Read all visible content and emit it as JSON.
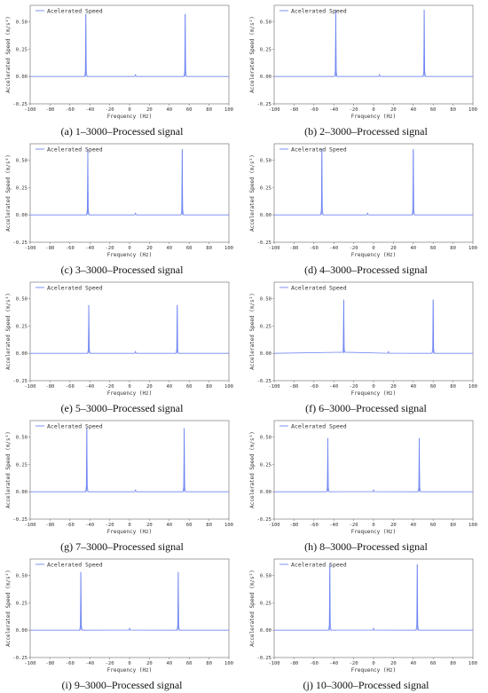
{
  "figure": {
    "series_color": "#6f86f2",
    "axis_color": "#666666"
  },
  "chart_data": [
    {
      "type": "line",
      "caption": "(a) 1–3000–Processed signal",
      "legend": "Acelerated Speed",
      "xlabel": "Frequency (Hz)",
      "ylabel": "Accelerated Speed (m/s²)",
      "xlim": [
        -100,
        100
      ],
      "ylim": [
        -0.25,
        0.65
      ],
      "xticks": [
        "-100",
        "-80",
        "-60",
        "-40",
        "-20",
        "0",
        "20",
        "40",
        "60",
        "80",
        "100"
      ],
      "yticks": [
        "-0.25",
        "0.00",
        "0.25",
        "0.50"
      ],
      "peaks": [
        {
          "x": -44,
          "y": 0.57
        },
        {
          "x": 56,
          "y": 0.57
        }
      ],
      "baseline": 0.0,
      "minor": [
        {
          "x": 6,
          "y": 0.02
        }
      ]
    },
    {
      "type": "line",
      "caption": "(b) 2–3000–Processed signal",
      "legend": "Acelerated Speed",
      "xlabel": "Frequency (Hz)",
      "ylabel": "Accelerated Speed (m/s²)",
      "xlim": [
        -100,
        100
      ],
      "ylim": [
        -0.25,
        0.65
      ],
      "xticks": [
        "-100",
        "-80",
        "-60",
        "-40",
        "-20",
        "0",
        "20",
        "40",
        "60",
        "80",
        "100"
      ],
      "yticks": [
        "-0.25",
        "0.00",
        "0.25",
        "0.50"
      ],
      "peaks": [
        {
          "x": -38,
          "y": 0.61
        },
        {
          "x": 51,
          "y": 0.61
        }
      ],
      "baseline": 0.0,
      "minor": [
        {
          "x": 6,
          "y": 0.02
        }
      ]
    },
    {
      "type": "line",
      "caption": "(c) 3–3000–Processed signal",
      "legend": "Acelerated Speed",
      "xlabel": "Frequency (Hz)",
      "ylabel": "Accelerated Speed (m/s²)",
      "xlim": [
        -100,
        100
      ],
      "ylim": [
        -0.25,
        0.65
      ],
      "xticks": [
        "-100",
        "-80",
        "-60",
        "-40",
        "-20",
        "0",
        "20",
        "40",
        "60",
        "80",
        "100"
      ],
      "yticks": [
        "-0.25",
        "0.00",
        "0.25",
        "0.50"
      ],
      "peaks": [
        {
          "x": -42,
          "y": 0.6
        },
        {
          "x": 53,
          "y": 0.6
        }
      ],
      "baseline": 0.0,
      "minor": [
        {
          "x": 6,
          "y": 0.02
        }
      ]
    },
    {
      "type": "line",
      "caption": "(d) 4–3000–Processed signal",
      "legend": "Acelerated Speed",
      "xlabel": "Frequency (Hz)",
      "ylabel": "Accelerated Speed (m/s²)",
      "xlim": [
        -100,
        100
      ],
      "ylim": [
        -0.25,
        0.65
      ],
      "xticks": [
        "-100",
        "-80",
        "-60",
        "-40",
        "-20",
        "0",
        "20",
        "40",
        "60",
        "80",
        "100"
      ],
      "yticks": [
        "-0.25",
        "0.00",
        "0.25",
        "0.50"
      ],
      "peaks": [
        {
          "x": -52,
          "y": 0.6
        },
        {
          "x": 40,
          "y": 0.6
        }
      ],
      "baseline": 0.0,
      "minor": [
        {
          "x": -6,
          "y": 0.02
        }
      ]
    },
    {
      "type": "line",
      "caption": "(e) 5–3000–Processed signal",
      "legend": "Acelerated Speed",
      "xlabel": "Frequency (Hz)",
      "ylabel": "Accelerated Speed (m/s²)",
      "xlim": [
        -100,
        100
      ],
      "ylim": [
        -0.25,
        0.65
      ],
      "xticks": [
        "-100",
        "-80",
        "-60",
        "-40",
        "-20",
        "0",
        "20",
        "40",
        "60",
        "80",
        "100"
      ],
      "yticks": [
        "-0.25",
        "0.00",
        "0.25",
        "0.50"
      ],
      "peaks": [
        {
          "x": -41,
          "y": 0.44
        },
        {
          "x": 48,
          "y": 0.44
        }
      ],
      "baseline": 0.0,
      "minor": [
        {
          "x": 6,
          "y": 0.02
        }
      ]
    },
    {
      "type": "line",
      "caption": "(f) 6–3000–Processed signal",
      "legend": "Acelerated Speed",
      "xlabel": "Frequency (Hz)",
      "ylabel": "Accelerated Speed (m/s²)",
      "xlim": [
        -100,
        100
      ],
      "ylim": [
        -0.25,
        0.65
      ],
      "xticks": [
        "-100",
        "-80",
        "-60",
        "-40",
        "-20",
        "0",
        "20",
        "40",
        "60",
        "80",
        "100"
      ],
      "yticks": [
        "-0.25",
        "0.00",
        "0.25",
        "0.50"
      ],
      "peaks": [
        {
          "x": -30,
          "y": 0.49
        },
        {
          "x": 60,
          "y": 0.49
        }
      ],
      "baseline": 0.0,
      "minor": [
        {
          "x": 15,
          "y": 0.02
        }
      ]
    },
    {
      "type": "line",
      "caption": "(g) 7–3000–Processed signal",
      "legend": "Acelerated Speed",
      "xlabel": "Frequency (Hz)",
      "ylabel": "Accelerated Speed (m/s²)",
      "xlim": [
        -100,
        100
      ],
      "ylim": [
        -0.25,
        0.65
      ],
      "xticks": [
        "-100",
        "-80",
        "-60",
        "-40",
        "-20",
        "0",
        "20",
        "40",
        "60",
        "80",
        "100"
      ],
      "yticks": [
        "-0.25",
        "0.00",
        "0.25",
        "0.50"
      ],
      "peaks": [
        {
          "x": -43,
          "y": 0.58
        },
        {
          "x": 55,
          "y": 0.58
        }
      ],
      "baseline": 0.0,
      "minor": [
        {
          "x": 6,
          "y": 0.02
        }
      ]
    },
    {
      "type": "line",
      "caption": "(h) 8–3000–Processed signal",
      "legend": "Acelerated Speed",
      "xlabel": "Frequency (Hz)",
      "ylabel": "Accelerated Speed (m/s²)",
      "xlim": [
        -100,
        100
      ],
      "ylim": [
        -0.25,
        0.65
      ],
      "xticks": [
        "-100",
        "-80",
        "-60",
        "-40",
        "-20",
        "0",
        "20",
        "40",
        "60",
        "80",
        "100"
      ],
      "yticks": [
        "-0.25",
        "0.00",
        "0.25",
        "0.50"
      ],
      "peaks": [
        {
          "x": -46,
          "y": 0.49
        },
        {
          "x": 46,
          "y": 0.49
        }
      ],
      "baseline": 0.0,
      "minor": [
        {
          "x": 0,
          "y": 0.02
        }
      ]
    },
    {
      "type": "line",
      "caption": "(i) 9–3000–Processed signal",
      "legend": "Acelerated Speed",
      "xlabel": "Frequency (Hz)",
      "ylabel": "Accelerated Speed (m/s²)",
      "xlim": [
        -100,
        100
      ],
      "ylim": [
        -0.25,
        0.65
      ],
      "xticks": [
        "-100",
        "-80",
        "-60",
        "-40",
        "-20",
        "0",
        "20",
        "40",
        "60",
        "80",
        "100"
      ],
      "yticks": [
        "-0.25",
        "0.00",
        "0.25",
        "0.50"
      ],
      "peaks": [
        {
          "x": -49,
          "y": 0.53
        },
        {
          "x": 49,
          "y": 0.53
        }
      ],
      "baseline": 0.0,
      "minor": [
        {
          "x": 0,
          "y": 0.02
        }
      ]
    },
    {
      "type": "line",
      "caption": "(j) 10–3000–Processed signal",
      "legend": "Acelerated Speed",
      "xlabel": "Frequency (Hz)",
      "ylabel": "Accelerated Speed (m/s²)",
      "xlim": [
        -100,
        100
      ],
      "ylim": [
        -0.25,
        0.65
      ],
      "xticks": [
        "-100",
        "-80",
        "-60",
        "-40",
        "-20",
        "0",
        "20",
        "40",
        "60",
        "80",
        "100"
      ],
      "yticks": [
        "-0.25",
        "0.00",
        "0.25",
        "0.50"
      ],
      "peaks": [
        {
          "x": -44,
          "y": 0.6
        },
        {
          "x": 44,
          "y": 0.6
        }
      ],
      "baseline": 0.0,
      "minor": [
        {
          "x": 0,
          "y": 0.02
        }
      ]
    }
  ]
}
